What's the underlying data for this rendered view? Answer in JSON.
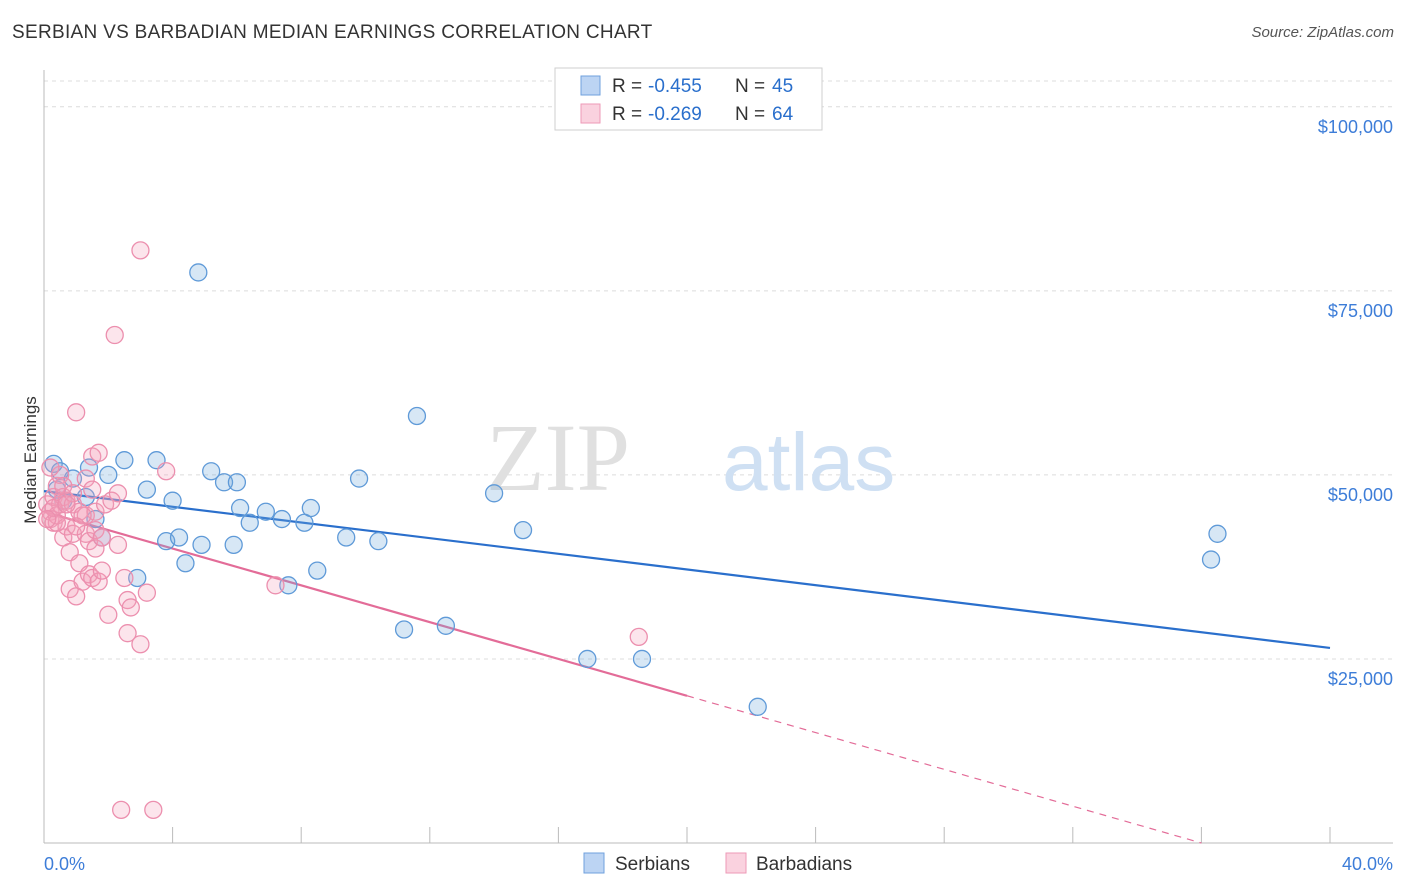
{
  "chart_data": {
    "type": "scatter",
    "title": "SERBIAN VS BARBADIAN MEDIAN EARNINGS CORRELATION CHART",
    "source": "Source: ZipAtlas.com",
    "ylabel": "Median Earnings",
    "xlabel": "",
    "xlim": [
      0,
      40
    ],
    "ylim": [
      0,
      105000
    ],
    "x_tick_labels": {
      "left": "0.0%",
      "right": "40.0%"
    },
    "y_ticks": [
      {
        "value": 25000,
        "label": "$25,000"
      },
      {
        "value": 50000,
        "label": "$50,000"
      },
      {
        "value": 75000,
        "label": "$75,000"
      },
      {
        "value": 100000,
        "label": "$100,000"
      }
    ],
    "watermark": {
      "zip": "ZIP",
      "atlas": "atlas"
    },
    "legend": {
      "r_label": "R = ",
      "n_label": "N = ",
      "entries": [
        {
          "name": "Serbians",
          "r": "-0.455",
          "n": "45",
          "color": "#6fa8dc",
          "line": "#2a6fcc"
        },
        {
          "name": "Barbadians",
          "r": "-0.269",
          "n": "64",
          "color": "#f4a0bb",
          "line": "#e36c98"
        }
      ]
    },
    "series": [
      {
        "name": "Serbians",
        "trend": {
          "x0": 0,
          "y0": 47800,
          "x1": 40,
          "y1": 26500,
          "solid_until": 40
        },
        "points": [
          [
            0.3,
            51500
          ],
          [
            0.5,
            50500
          ],
          [
            0.4,
            48000
          ],
          [
            0.6,
            46500
          ],
          [
            0.9,
            49500
          ],
          [
            1.3,
            47000
          ],
          [
            1.4,
            51000
          ],
          [
            1.6,
            44000
          ],
          [
            1.8,
            41500
          ],
          [
            2.0,
            50000
          ],
          [
            2.5,
            52000
          ],
          [
            2.9,
            36000
          ],
          [
            3.2,
            48000
          ],
          [
            3.5,
            52000
          ],
          [
            3.8,
            41000
          ],
          [
            4.0,
            46500
          ],
          [
            4.2,
            41500
          ],
          [
            4.4,
            38000
          ],
          [
            4.8,
            77500
          ],
          [
            4.9,
            40500
          ],
          [
            5.2,
            50500
          ],
          [
            5.6,
            49000
          ],
          [
            5.9,
            40500
          ],
          [
            6.1,
            45500
          ],
          [
            6.4,
            43500
          ],
          [
            6.9,
            45000
          ],
          [
            7.4,
            44000
          ],
          [
            7.6,
            35000
          ],
          [
            8.1,
            43500
          ],
          [
            8.3,
            45500
          ],
          [
            8.5,
            37000
          ],
          [
            9.4,
            41500
          ],
          [
            9.8,
            49500
          ],
          [
            10.4,
            41000
          ],
          [
            11.2,
            29000
          ],
          [
            11.6,
            58000
          ],
          [
            12.5,
            29500
          ],
          [
            14.0,
            47500
          ],
          [
            14.9,
            42500
          ],
          [
            16.9,
            25000
          ],
          [
            18.6,
            25000
          ],
          [
            22.2,
            18500
          ],
          [
            36.3,
            38500
          ],
          [
            36.5,
            42000
          ],
          [
            6.0,
            49000
          ]
        ]
      },
      {
        "name": "Barbadians",
        "trend": {
          "x0": 0,
          "y0": 45000,
          "x1": 36,
          "y1": 0,
          "solid_until": 20
        },
        "points": [
          [
            0.1,
            46000
          ],
          [
            0.2,
            45000
          ],
          [
            0.2,
            44000
          ],
          [
            0.3,
            47000
          ],
          [
            0.3,
            43500
          ],
          [
            0.4,
            48500
          ],
          [
            0.4,
            44500
          ],
          [
            0.5,
            46000
          ],
          [
            0.5,
            50000
          ],
          [
            0.6,
            41500
          ],
          [
            0.6,
            47000
          ],
          [
            0.7,
            46500
          ],
          [
            0.7,
            43000
          ],
          [
            0.8,
            39500
          ],
          [
            0.8,
            34500
          ],
          [
            0.9,
            42000
          ],
          [
            0.9,
            46000
          ],
          [
            1.0,
            58500
          ],
          [
            1.0,
            33500
          ],
          [
            1.1,
            38000
          ],
          [
            1.1,
            45000
          ],
          [
            1.2,
            35500
          ],
          [
            1.3,
            44500
          ],
          [
            1.3,
            42000
          ],
          [
            1.3,
            49500
          ],
          [
            1.4,
            36500
          ],
          [
            1.4,
            41000
          ],
          [
            1.5,
            48000
          ],
          [
            1.5,
            52500
          ],
          [
            1.5,
            36000
          ],
          [
            1.6,
            40000
          ],
          [
            1.6,
            45000
          ],
          [
            1.6,
            42500
          ],
          [
            1.7,
            53000
          ],
          [
            1.7,
            35500
          ],
          [
            1.8,
            37000
          ],
          [
            1.9,
            46000
          ],
          [
            2.0,
            31000
          ],
          [
            2.1,
            46500
          ],
          [
            2.2,
            69000
          ],
          [
            2.3,
            47500
          ],
          [
            2.3,
            40500
          ],
          [
            2.4,
            4500
          ],
          [
            2.6,
            28500
          ],
          [
            2.6,
            33000
          ],
          [
            2.7,
            32000
          ],
          [
            3.0,
            80500
          ],
          [
            3.0,
            27000
          ],
          [
            3.2,
            34000
          ],
          [
            3.4,
            4500
          ],
          [
            3.8,
            50500
          ],
          [
            7.2,
            35000
          ],
          [
            18.5,
            28000
          ],
          [
            0.2,
            51000
          ],
          [
            0.6,
            48500
          ],
          [
            0.4,
            43500
          ],
          [
            0.9,
            47500
          ],
          [
            1.2,
            44500
          ],
          [
            1.8,
            41500
          ],
          [
            0.3,
            45500
          ],
          [
            1.0,
            43000
          ],
          [
            2.5,
            36000
          ],
          [
            0.1,
            44000
          ],
          [
            0.7,
            46000
          ]
        ]
      }
    ]
  }
}
